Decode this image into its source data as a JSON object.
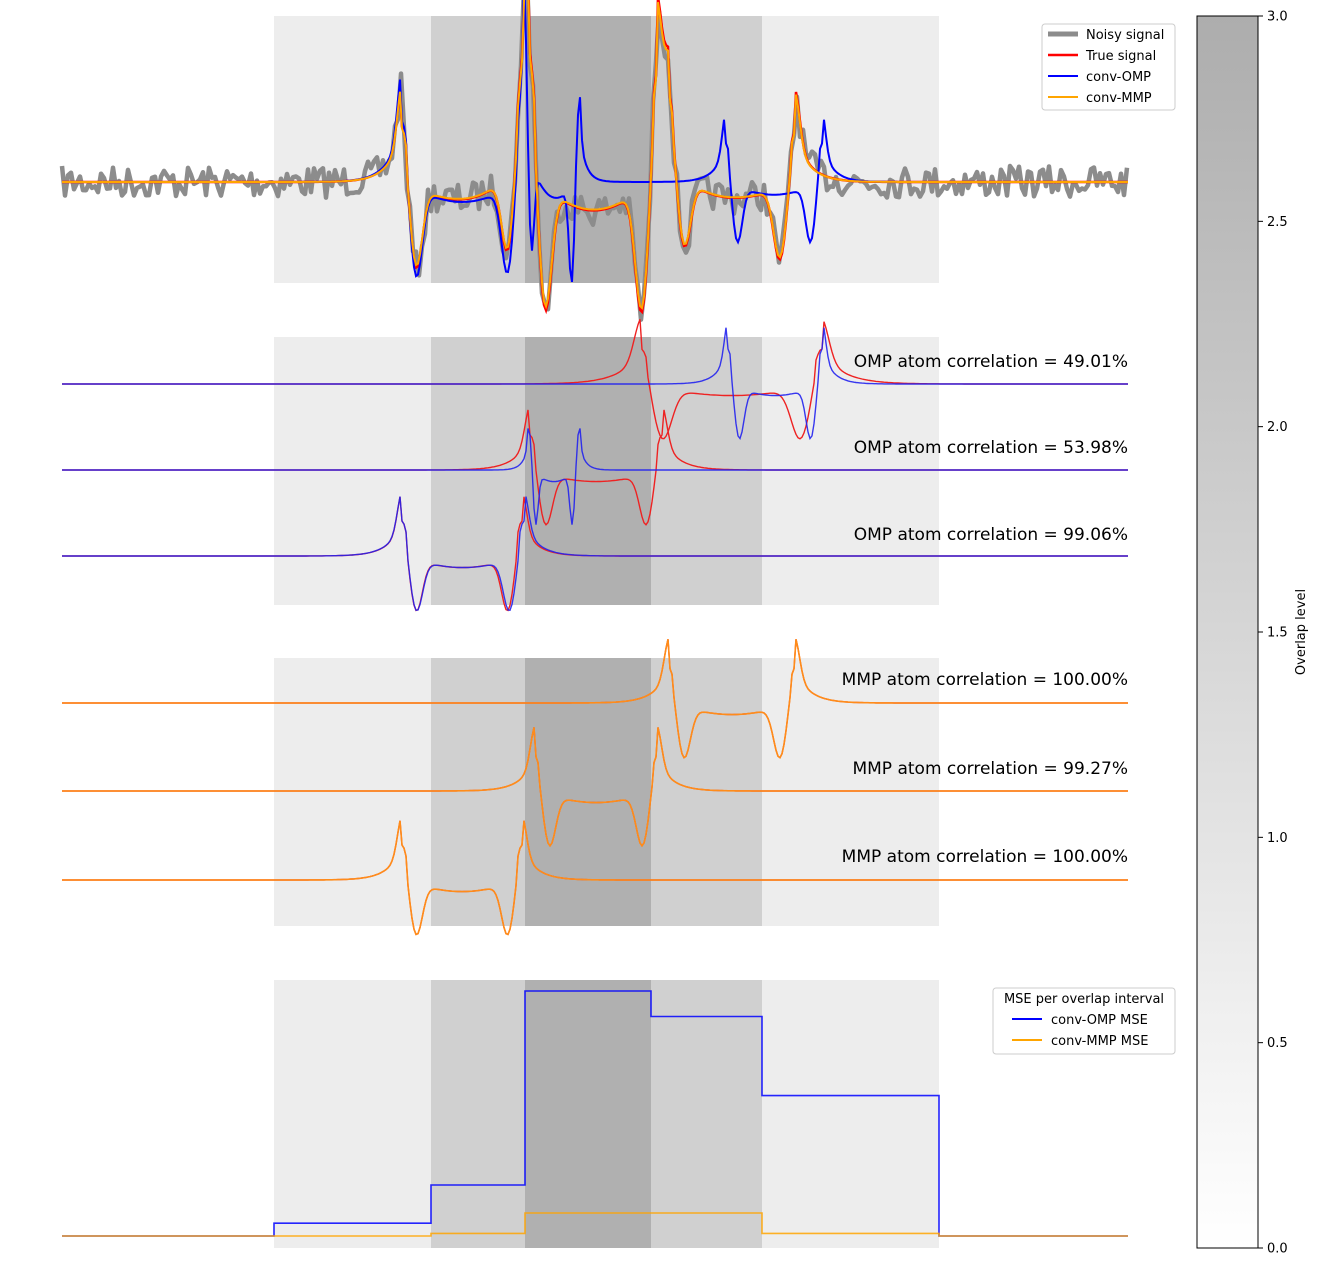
{
  "chart_data": [
    {
      "type": "line",
      "panel": "signal-reconstruction",
      "title": "",
      "xlabel": "",
      "ylabel": "",
      "legend_position": "top-right",
      "series": [
        {
          "name": "Noisy signal",
          "color": "#8c8c8c"
        },
        {
          "name": "True signal",
          "color": "#ff0000"
        },
        {
          "name": "conv-OMP",
          "color": "#0000ff"
        },
        {
          "name": "conv-MMP",
          "color": "#ffa500"
        }
      ],
      "overlap_levels": [
        1,
        2,
        3,
        2,
        1
      ]
    },
    {
      "type": "line",
      "panel": "omp-atoms",
      "annotations": [
        "OMP atom correlation = 49.01%",
        "OMP atom correlation = 53.98%",
        "OMP atom correlation = 99.06%"
      ],
      "correlations": [
        49.01,
        53.98,
        99.06
      ]
    },
    {
      "type": "line",
      "panel": "mmp-atoms",
      "annotations": [
        "MMP atom correlation = 100.00%",
        "MMP atom correlation = 99.27%",
        "MMP atom correlation = 100.00%"
      ],
      "correlations": [
        100.0,
        99.27,
        100.0
      ]
    },
    {
      "type": "line",
      "panel": "mse-per-overlap",
      "legend_title": "MSE per overlap interval",
      "legend_position": "top-right",
      "intervals": [
        "outside",
        "level 1",
        "level 2",
        "level 3",
        "level 2",
        "level 1",
        "outside"
      ],
      "series": [
        {
          "name": "conv-OMP MSE",
          "color": "#0000ff",
          "values": [
            0.0,
            0.05,
            0.2,
            0.96,
            0.86,
            0.55,
            0.0
          ]
        },
        {
          "name": "conv-MMP MSE",
          "color": "#ffa500",
          "values": [
            0.0,
            0.0,
            0.01,
            0.09,
            0.09,
            0.01,
            0.0
          ]
        }
      ]
    },
    {
      "type": "colorbar",
      "label": "Overlap level",
      "range": [
        0.0,
        3.0
      ],
      "ticks": [
        "0.0",
        "0.5",
        "1.0",
        "1.5",
        "2.0",
        "2.5",
        "3.0"
      ]
    }
  ]
}
